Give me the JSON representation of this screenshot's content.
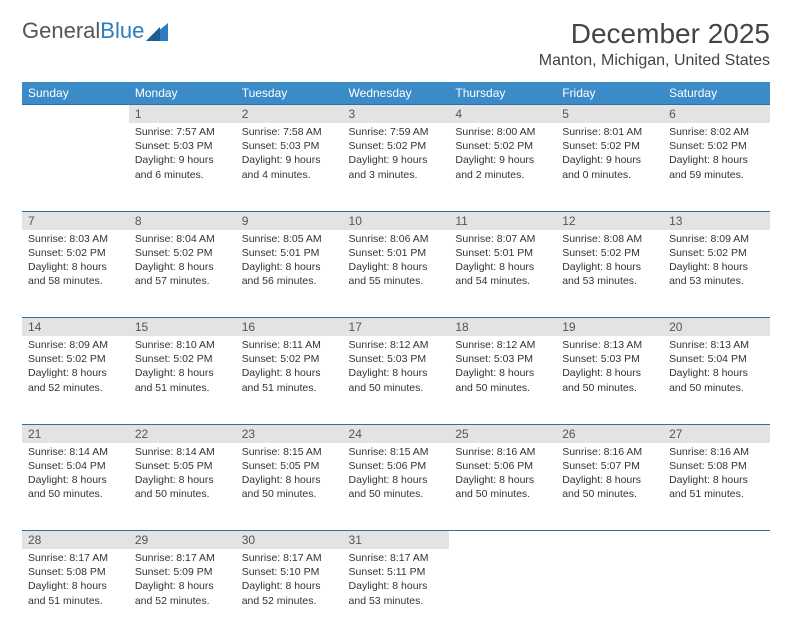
{
  "brand": {
    "general": "General",
    "blue": "Blue"
  },
  "title": "December 2025",
  "location": "Manton, Michigan, United States",
  "colors": {
    "header_bg": "#3b8bc8",
    "header_text": "#ffffff",
    "daynum_bg": "#e3e3e3",
    "row_border": "#2f6fa6",
    "text": "#333333"
  },
  "weekdays": [
    "Sunday",
    "Monday",
    "Tuesday",
    "Wednesday",
    "Thursday",
    "Friday",
    "Saturday"
  ],
  "weeks": [
    [
      null,
      {
        "n": "1",
        "sunrise": "7:57 AM",
        "sunset": "5:03 PM",
        "daylight": "9 hours and 6 minutes."
      },
      {
        "n": "2",
        "sunrise": "7:58 AM",
        "sunset": "5:03 PM",
        "daylight": "9 hours and 4 minutes."
      },
      {
        "n": "3",
        "sunrise": "7:59 AM",
        "sunset": "5:02 PM",
        "daylight": "9 hours and 3 minutes."
      },
      {
        "n": "4",
        "sunrise": "8:00 AM",
        "sunset": "5:02 PM",
        "daylight": "9 hours and 2 minutes."
      },
      {
        "n": "5",
        "sunrise": "8:01 AM",
        "sunset": "5:02 PM",
        "daylight": "9 hours and 0 minutes."
      },
      {
        "n": "6",
        "sunrise": "8:02 AM",
        "sunset": "5:02 PM",
        "daylight": "8 hours and 59 minutes."
      }
    ],
    [
      {
        "n": "7",
        "sunrise": "8:03 AM",
        "sunset": "5:02 PM",
        "daylight": "8 hours and 58 minutes."
      },
      {
        "n": "8",
        "sunrise": "8:04 AM",
        "sunset": "5:02 PM",
        "daylight": "8 hours and 57 minutes."
      },
      {
        "n": "9",
        "sunrise": "8:05 AM",
        "sunset": "5:01 PM",
        "daylight": "8 hours and 56 minutes."
      },
      {
        "n": "10",
        "sunrise": "8:06 AM",
        "sunset": "5:01 PM",
        "daylight": "8 hours and 55 minutes."
      },
      {
        "n": "11",
        "sunrise": "8:07 AM",
        "sunset": "5:01 PM",
        "daylight": "8 hours and 54 minutes."
      },
      {
        "n": "12",
        "sunrise": "8:08 AM",
        "sunset": "5:02 PM",
        "daylight": "8 hours and 53 minutes."
      },
      {
        "n": "13",
        "sunrise": "8:09 AM",
        "sunset": "5:02 PM",
        "daylight": "8 hours and 53 minutes."
      }
    ],
    [
      {
        "n": "14",
        "sunrise": "8:09 AM",
        "sunset": "5:02 PM",
        "daylight": "8 hours and 52 minutes."
      },
      {
        "n": "15",
        "sunrise": "8:10 AM",
        "sunset": "5:02 PM",
        "daylight": "8 hours and 51 minutes."
      },
      {
        "n": "16",
        "sunrise": "8:11 AM",
        "sunset": "5:02 PM",
        "daylight": "8 hours and 51 minutes."
      },
      {
        "n": "17",
        "sunrise": "8:12 AM",
        "sunset": "5:03 PM",
        "daylight": "8 hours and 50 minutes."
      },
      {
        "n": "18",
        "sunrise": "8:12 AM",
        "sunset": "5:03 PM",
        "daylight": "8 hours and 50 minutes."
      },
      {
        "n": "19",
        "sunrise": "8:13 AM",
        "sunset": "5:03 PM",
        "daylight": "8 hours and 50 minutes."
      },
      {
        "n": "20",
        "sunrise": "8:13 AM",
        "sunset": "5:04 PM",
        "daylight": "8 hours and 50 minutes."
      }
    ],
    [
      {
        "n": "21",
        "sunrise": "8:14 AM",
        "sunset": "5:04 PM",
        "daylight": "8 hours and 50 minutes."
      },
      {
        "n": "22",
        "sunrise": "8:14 AM",
        "sunset": "5:05 PM",
        "daylight": "8 hours and 50 minutes."
      },
      {
        "n": "23",
        "sunrise": "8:15 AM",
        "sunset": "5:05 PM",
        "daylight": "8 hours and 50 minutes."
      },
      {
        "n": "24",
        "sunrise": "8:15 AM",
        "sunset": "5:06 PM",
        "daylight": "8 hours and 50 minutes."
      },
      {
        "n": "25",
        "sunrise": "8:16 AM",
        "sunset": "5:06 PM",
        "daylight": "8 hours and 50 minutes."
      },
      {
        "n": "26",
        "sunrise": "8:16 AM",
        "sunset": "5:07 PM",
        "daylight": "8 hours and 50 minutes."
      },
      {
        "n": "27",
        "sunrise": "8:16 AM",
        "sunset": "5:08 PM",
        "daylight": "8 hours and 51 minutes."
      }
    ],
    [
      {
        "n": "28",
        "sunrise": "8:17 AM",
        "sunset": "5:08 PM",
        "daylight": "8 hours and 51 minutes."
      },
      {
        "n": "29",
        "sunrise": "8:17 AM",
        "sunset": "5:09 PM",
        "daylight": "8 hours and 52 minutes."
      },
      {
        "n": "30",
        "sunrise": "8:17 AM",
        "sunset": "5:10 PM",
        "daylight": "8 hours and 52 minutes."
      },
      {
        "n": "31",
        "sunrise": "8:17 AM",
        "sunset": "5:11 PM",
        "daylight": "8 hours and 53 minutes."
      },
      null,
      null,
      null
    ]
  ],
  "labels": {
    "sunrise": "Sunrise:",
    "sunset": "Sunset:",
    "daylight": "Daylight:"
  }
}
